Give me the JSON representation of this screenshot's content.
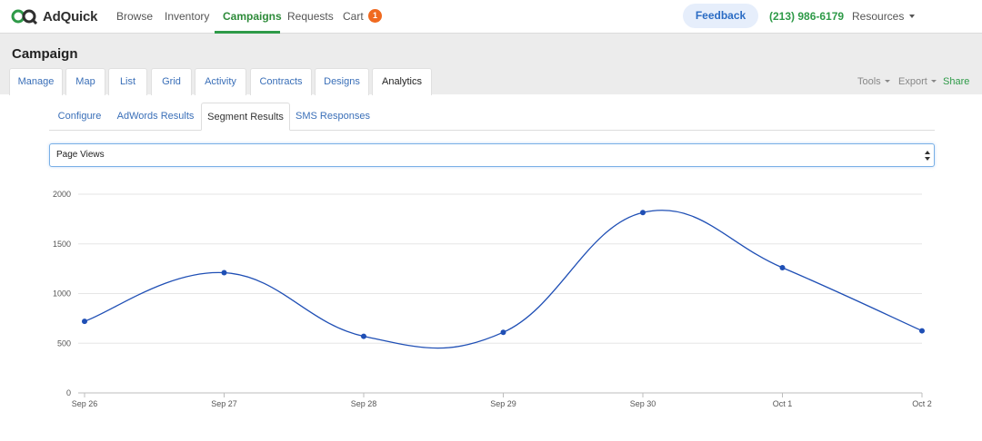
{
  "brand": {
    "name": "AdQuick"
  },
  "nav": {
    "items": [
      {
        "label": "Browse"
      },
      {
        "label": "Inventory"
      },
      {
        "label": "Campaigns",
        "active": true
      },
      {
        "label": "Requests"
      },
      {
        "label": "Cart"
      }
    ],
    "cart_count": "1",
    "feedback_label": "Feedback",
    "phone": "(213) 986-6179",
    "resources_label": "Resources"
  },
  "campaign": {
    "title": "Campaign",
    "tabs": [
      {
        "label": "Manage"
      },
      {
        "label": "Map"
      },
      {
        "label": "List"
      },
      {
        "label": "Grid"
      },
      {
        "label": "Activity"
      },
      {
        "label": "Contracts"
      },
      {
        "label": "Designs"
      },
      {
        "label": "Analytics",
        "active": true
      }
    ],
    "tools_label": "Tools",
    "export_label": "Export",
    "share_label": "Share"
  },
  "analytics": {
    "subtabs": [
      {
        "label": "Configure"
      },
      {
        "label": "AdWords Results"
      },
      {
        "label": "Segment Results",
        "active": true
      },
      {
        "label": "SMS Responses"
      }
    ],
    "metric_select": {
      "value": "Page Views"
    }
  },
  "chart_data": {
    "type": "line",
    "title": "",
    "xlabel": "",
    "ylabel": "",
    "categories": [
      "Sep 26",
      "Sep 27",
      "Sep 28",
      "Sep 29",
      "Sep 30",
      "Oct 1",
      "Oct 2"
    ],
    "series": [
      {
        "values": [
          720,
          1210,
          570,
          610,
          1815,
          1260,
          625
        ]
      }
    ],
    "ylim": [
      0,
      2000
    ],
    "yticks": [
      0,
      500,
      1000,
      1500,
      2000
    ],
    "grid": true,
    "line_color": "#1f4fb5"
  },
  "colors": {
    "accent_green": "#2e9a48",
    "link_blue": "#3a6fb8",
    "cart_badge": "#f06a1f"
  }
}
